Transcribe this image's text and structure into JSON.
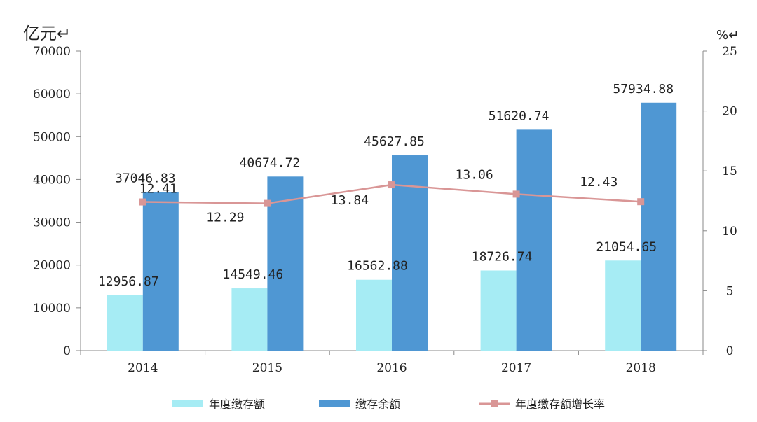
{
  "chart_data": {
    "type": "bar",
    "categories": [
      "2014",
      "2015",
      "2016",
      "2017",
      "2018"
    ],
    "y_left_unit": "亿元↵",
    "y_right_unit": "%↵",
    "y_left_range": [
      0,
      70000
    ],
    "y_left_ticks": [
      "0",
      "10000",
      "20000",
      "30000",
      "40000",
      "50000",
      "60000",
      "70000"
    ],
    "y_right_range": [
      0,
      25
    ],
    "y_right_ticks": [
      "0",
      "5",
      "10",
      "15",
      "20",
      "25"
    ],
    "series": [
      {
        "name": "年度缴存额",
        "type": "bar",
        "axis": "left",
        "color": "#a6ecf4",
        "values": [
          12956.87,
          14549.46,
          16562.88,
          18726.74,
          21054.65
        ],
        "labels": [
          "12956.87",
          "14549.46",
          "16562.88",
          "18726.74",
          "21054.65"
        ]
      },
      {
        "name": "缴存余额",
        "type": "bar",
        "axis": "left",
        "color": "#4f97d3",
        "values": [
          37046.83,
          40674.72,
          45627.85,
          51620.74,
          57934.88
        ],
        "labels": [
          "37046.83",
          "40674.72",
          "45627.85",
          "51620.74",
          "57934.88"
        ]
      },
      {
        "name": "年度缴存额增长率",
        "type": "line",
        "axis": "right",
        "color": "#d99696",
        "values": [
          12.41,
          12.29,
          13.84,
          13.06,
          12.43
        ],
        "labels": [
          "12.41",
          "12.29",
          "13.84",
          "13.06",
          "12.43"
        ]
      }
    ],
    "grid": false,
    "legend": "bottom"
  }
}
